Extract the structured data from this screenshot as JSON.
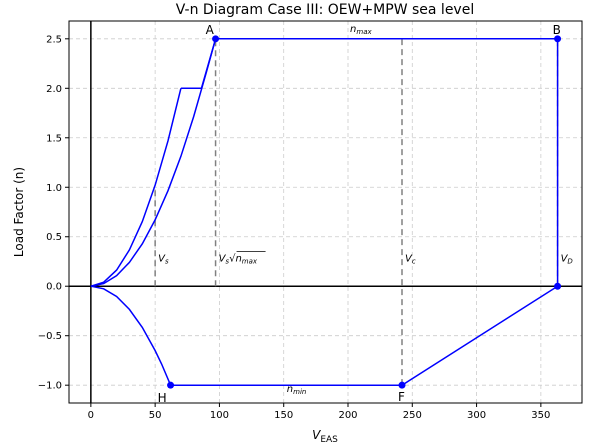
{
  "chart_data": {
    "type": "line",
    "title": "V-n Diagram Case III: OEW+MPW sea level",
    "xlabel_main": "V",
    "xlabel_sub": "EAS",
    "ylabel": "Load Factor (n)",
    "xlim": [
      -17,
      382
    ],
    "ylim": [
      -1.18,
      2.68
    ],
    "xticks": [
      0,
      50,
      100,
      150,
      200,
      250,
      300,
      350
    ],
    "yticks": [
      -1.0,
      -0.5,
      0.0,
      0.5,
      1.0,
      1.5,
      2.0,
      2.5
    ],
    "ytick_labels": [
      "−1.0",
      "−0.5",
      "0.0",
      "0.5",
      "1.0",
      "1.5",
      "2.0",
      "2.5"
    ],
    "grid": true,
    "colors": {
      "envelope": "#0000ff",
      "reference": "#808080",
      "grid": "#cccccc",
      "axis": "#000000"
    },
    "series": [
      {
        "role": "positive-stall-curve",
        "points": [
          [
            0,
            0
          ],
          [
            10,
            0.027
          ],
          [
            20,
            0.107
          ],
          [
            30,
            0.241
          ],
          [
            40,
            0.429
          ],
          [
            50,
            0.67
          ],
          [
            60,
            0.965
          ],
          [
            70,
            1.313
          ],
          [
            80,
            1.715
          ],
          [
            90,
            2.171
          ],
          [
            97,
            2.5
          ]
        ]
      },
      {
        "role": "upper-flap-curve",
        "points": [
          [
            0,
            0
          ],
          [
            10,
            0.041
          ],
          [
            20,
            0.163
          ],
          [
            30,
            0.367
          ],
          [
            40,
            0.653
          ],
          [
            50,
            1.02
          ],
          [
            60,
            1.469
          ],
          [
            70,
            2.0
          ]
        ]
      },
      {
        "role": "flap-limit-segment",
        "points": [
          [
            70,
            2.0
          ],
          [
            86,
            2.0
          ],
          [
            97,
            2.5
          ]
        ]
      },
      {
        "role": "negative-stall-curve",
        "points": [
          [
            0,
            0
          ],
          [
            10,
            -0.026
          ],
          [
            20,
            -0.104
          ],
          [
            30,
            -0.234
          ],
          [
            40,
            -0.416
          ],
          [
            50,
            -0.65
          ],
          [
            55,
            -0.786
          ],
          [
            62,
            -1.0
          ]
        ]
      },
      {
        "role": "envelope-boundary",
        "points": [
          [
            97,
            2.5
          ],
          [
            363,
            2.5
          ],
          [
            363,
            0
          ],
          [
            242,
            -1.0
          ],
          [
            62,
            -1.0
          ]
        ]
      }
    ],
    "markers": [
      {
        "label": "A",
        "x": 97,
        "y": 2.5
      },
      {
        "label": "B",
        "x": 363,
        "y": 2.5
      },
      {
        "label": "",
        "x": 363,
        "y": 0
      },
      {
        "label": "F",
        "x": 242,
        "y": -1.0
      },
      {
        "label": "H",
        "x": 62,
        "y": -1.0
      }
    ],
    "reference_lines": [
      {
        "x": 50,
        "y_from": 0,
        "y_to": 1.0,
        "label": "Vs"
      },
      {
        "x": 97,
        "y_from": 0,
        "y_to": 2.5,
        "label": "Vs√nmax"
      },
      {
        "x": 242,
        "y_from": -1.0,
        "y_to": 2.5,
        "label": "Vc"
      },
      {
        "x": 363,
        "y_from": 0,
        "y_to": 2.5,
        "label": "VD"
      }
    ],
    "annotations": [
      {
        "text": "n",
        "sub": "max",
        "x": 210,
        "y": 2.57
      },
      {
        "text": "n",
        "sub": "min",
        "x": 160,
        "y": -1.07
      }
    ]
  }
}
